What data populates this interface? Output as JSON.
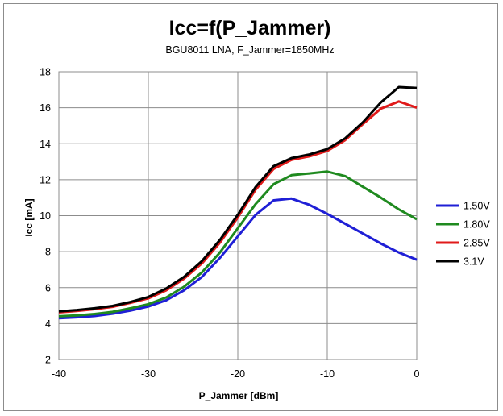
{
  "chart_data": {
    "type": "line",
    "title": "Icc=f(P_Jammer)",
    "subtitle": "BGU8011 LNA, F_Jammer=1850MHz",
    "xlabel": "P_Jammer [dBm]",
    "ylabel": "Icc [mA]",
    "xlim": [
      -40,
      0
    ],
    "ylim": [
      2,
      18
    ],
    "xticks": [
      -40,
      -30,
      -20,
      -10,
      0
    ],
    "yticks": [
      2,
      4,
      6,
      8,
      10,
      12,
      14,
      16,
      18
    ],
    "grid": true,
    "legend_position": "right",
    "x": [
      -40,
      -38,
      -36,
      -34,
      -32,
      -30,
      -28,
      -26,
      -24,
      -22,
      -20,
      -18,
      -16,
      -14,
      -12,
      -10,
      -8,
      -6,
      -4,
      -2,
      0
    ],
    "series": [
      {
        "name": "1.50V",
        "color": "#1f1fd6",
        "values": [
          4.3,
          4.35,
          4.42,
          4.55,
          4.72,
          4.95,
          5.3,
          5.85,
          6.6,
          7.65,
          8.85,
          10.05,
          10.85,
          10.95,
          10.6,
          10.1,
          9.55,
          9.0,
          8.45,
          7.95,
          7.55
        ]
      },
      {
        "name": "1.80V",
        "color": "#1f8a1f",
        "values": [
          4.4,
          4.45,
          4.53,
          4.65,
          4.85,
          5.08,
          5.45,
          6.05,
          6.85,
          7.95,
          9.3,
          10.65,
          11.75,
          12.25,
          12.35,
          12.45,
          12.2,
          11.6,
          11.0,
          10.35,
          9.8
        ]
      },
      {
        "name": "2.85V",
        "color": "#e01a1a",
        "values": [
          4.62,
          4.7,
          4.8,
          4.93,
          5.15,
          5.4,
          5.85,
          6.5,
          7.35,
          8.5,
          9.9,
          11.45,
          12.6,
          13.1,
          13.3,
          13.6,
          14.2,
          15.1,
          15.95,
          16.35,
          16.0
        ]
      },
      {
        "name": "3.1V",
        "color": "#000000",
        "values": [
          4.68,
          4.75,
          4.85,
          4.98,
          5.2,
          5.48,
          5.95,
          6.6,
          7.48,
          8.65,
          10.05,
          11.6,
          12.75,
          13.2,
          13.4,
          13.7,
          14.3,
          15.2,
          16.3,
          17.15,
          17.1
        ]
      }
    ]
  }
}
